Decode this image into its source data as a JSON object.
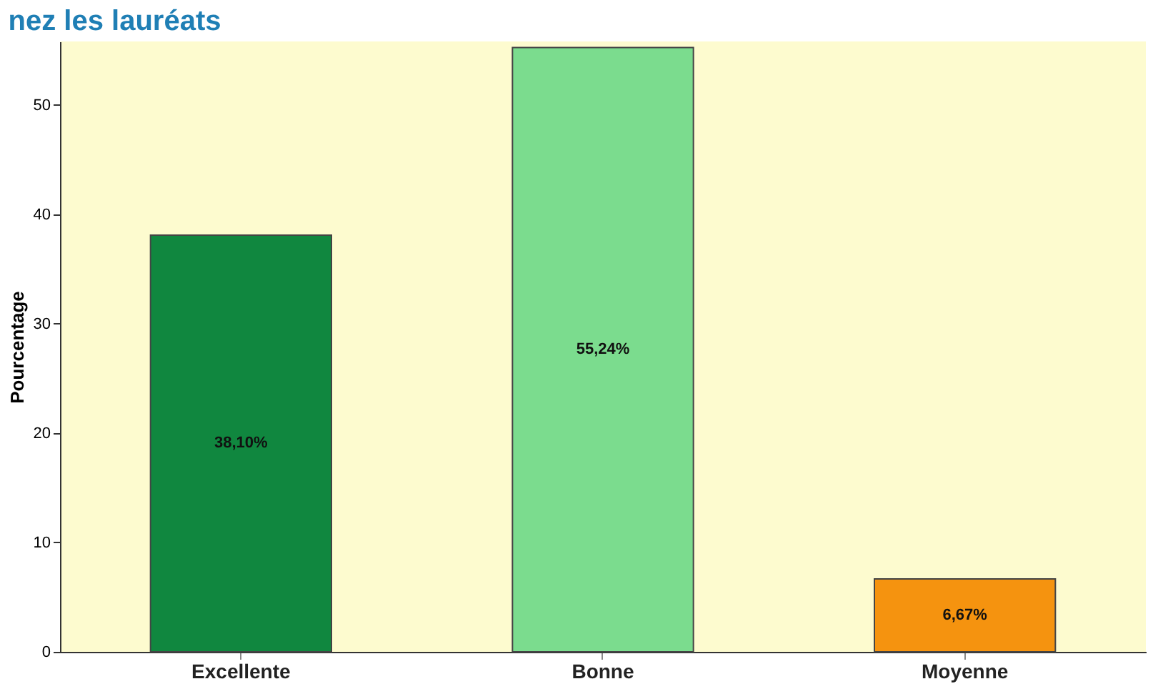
{
  "chart_data": {
    "type": "bar",
    "title": "nez les lauréats",
    "ylabel": "Pourcentage",
    "categories": [
      "Excellente",
      "Bonne",
      "Moyenne"
    ],
    "values": [
      38.1,
      55.24,
      6.67
    ],
    "colors": [
      "#10873f",
      "#7bdc8e",
      "#f5930f"
    ],
    "value_labels": [
      "38,10%",
      "55,24%",
      "6,67%"
    ],
    "ylim": [
      0,
      55.8
    ],
    "yticks": [
      0,
      10,
      20,
      30,
      40,
      50
    ],
    "grid": false
  }
}
